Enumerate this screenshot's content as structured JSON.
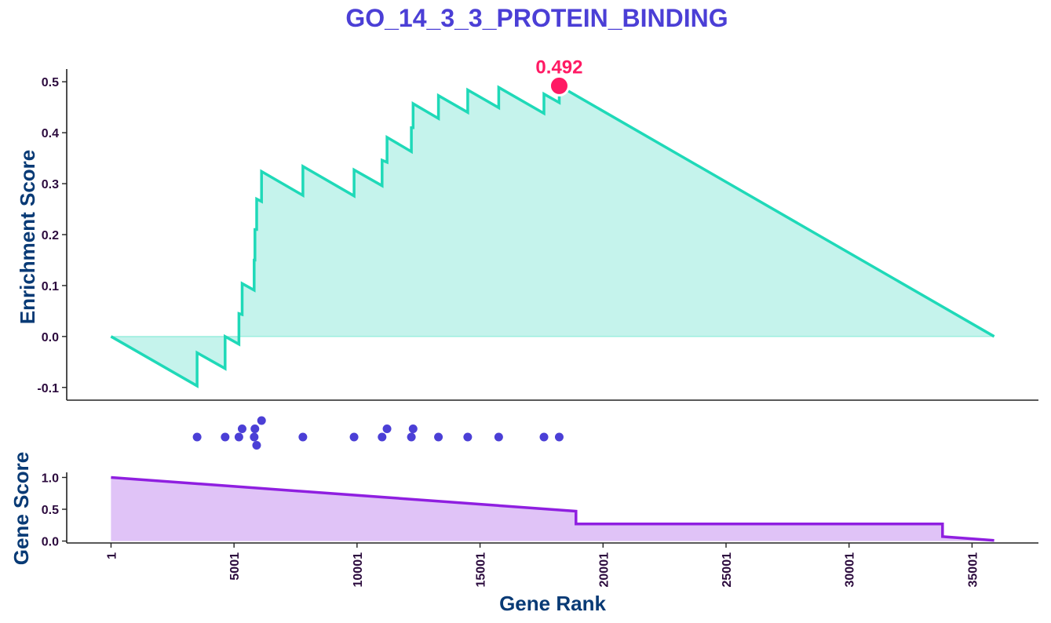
{
  "chart_data": {
    "type": "line",
    "title": "GO_14_3_3_PROTEIN_BINDING",
    "xlabel": "Gene Rank",
    "colors": {
      "title": "#4b3fd6",
      "axis_label": "#083a75",
      "tick": "#2b0a3d",
      "es_line": "#1fd9b8",
      "es_fill": "#c5f3ec",
      "peak": "#ff1a64",
      "hits": "#4b3fd6",
      "score_line": "#8f1fe0",
      "score_fill": "#e0c3f7",
      "axis": "#222222"
    },
    "x_ticks": [
      1,
      5001,
      10001,
      15001,
      20001,
      25001,
      30001,
      35001
    ],
    "xlim": [
      -1800,
      37700
    ],
    "enrichment": {
      "ylabel": "Enrichment Score",
      "ylim": [
        -0.125,
        0.525
      ],
      "y_ticks": [
        0.5,
        0.4,
        0.3,
        0.2,
        0.1,
        0.0,
        -0.1
      ],
      "y_tick_labels": [
        "0.5",
        "0.4",
        "0.3",
        "0.2",
        "0.1",
        "0.0",
        "-0.1"
      ],
      "points": [
        [
          1,
          0.0
        ],
        [
          3500,
          -0.097
        ],
        [
          3500,
          -0.032
        ],
        [
          4640,
          -0.063
        ],
        [
          4640,
          0.0
        ],
        [
          5200,
          -0.015
        ],
        [
          5200,
          0.045
        ],
        [
          5330,
          0.043
        ],
        [
          5330,
          0.104
        ],
        [
          5820,
          0.091
        ],
        [
          5820,
          0.15
        ],
        [
          5850,
          0.15
        ],
        [
          5850,
          0.21
        ],
        [
          5920,
          0.21
        ],
        [
          5920,
          0.27
        ],
        [
          6120,
          0.265
        ],
        [
          6120,
          0.324
        ],
        [
          7800,
          0.277
        ],
        [
          7800,
          0.334
        ],
        [
          9880,
          0.276
        ],
        [
          9880,
          0.327
        ],
        [
          11020,
          0.296
        ],
        [
          11020,
          0.346
        ],
        [
          11220,
          0.342
        ],
        [
          11220,
          0.391
        ],
        [
          12210,
          0.363
        ],
        [
          12210,
          0.41
        ],
        [
          12280,
          0.41
        ],
        [
          12280,
          0.457
        ],
        [
          13310,
          0.428
        ],
        [
          13310,
          0.473
        ],
        [
          14500,
          0.44
        ],
        [
          14500,
          0.484
        ],
        [
          15760,
          0.449
        ],
        [
          15760,
          0.489
        ],
        [
          17600,
          0.438
        ],
        [
          17600,
          0.476
        ],
        [
          18220,
          0.459
        ],
        [
          18220,
          0.492
        ],
        [
          35900,
          0.0
        ]
      ],
      "peak": {
        "x": 18220,
        "y": 0.492,
        "label": "0.492"
      }
    },
    "hits": {
      "points": [
        [
          3500,
          0
        ],
        [
          4640,
          0
        ],
        [
          5200,
          0
        ],
        [
          5330,
          1
        ],
        [
          5820,
          0
        ],
        [
          5850,
          1
        ],
        [
          5920,
          -1
        ],
        [
          6120,
          2
        ],
        [
          7800,
          0
        ],
        [
          9880,
          0
        ],
        [
          11020,
          0
        ],
        [
          11220,
          1
        ],
        [
          12210,
          0
        ],
        [
          12280,
          1
        ],
        [
          13310,
          0
        ],
        [
          14500,
          0
        ],
        [
          15760,
          0
        ],
        [
          17600,
          0
        ],
        [
          18220,
          0
        ]
      ]
    },
    "gene_score": {
      "ylabel": "Gene Score",
      "ylim": [
        -0.03,
        1.08
      ],
      "y_ticks": [
        1.0,
        0.5,
        0.0
      ],
      "y_tick_labels": [
        "1.0",
        "0.5",
        "0.0"
      ],
      "points": [
        [
          1,
          1.0
        ],
        [
          18900,
          0.47
        ],
        [
          18900,
          0.27
        ],
        [
          33800,
          0.27
        ],
        [
          33800,
          0.07
        ],
        [
          35900,
          0.01
        ]
      ]
    }
  }
}
